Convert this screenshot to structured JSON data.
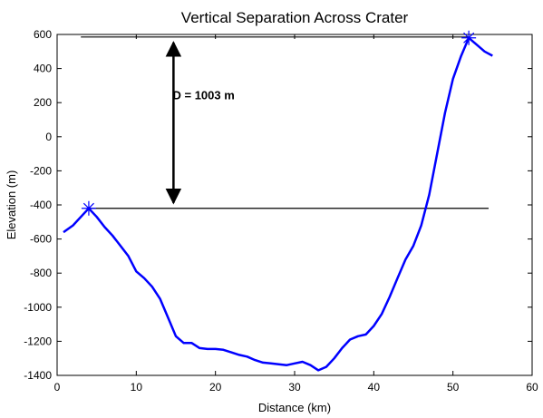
{
  "chart_data": {
    "type": "line",
    "title": "Vertical Separation Across Crater",
    "xlabel": "Distance (km)",
    "ylabel": "Elevation (m)",
    "xlim": [
      0,
      60
    ],
    "ylim": [
      -1400,
      600
    ],
    "xticks": [
      0,
      10,
      20,
      30,
      40,
      50,
      60
    ],
    "yticks": [
      -1400,
      -1200,
      -1000,
      -800,
      -600,
      -400,
      -200,
      0,
      200,
      400,
      600
    ],
    "grid": false,
    "legend": "none",
    "series": [
      {
        "color": "#0000ff",
        "x": [
          0.8,
          2,
          3,
          4,
          5,
          6,
          7,
          8,
          9,
          10,
          11,
          12,
          13,
          14,
          15,
          16,
          17,
          18,
          19,
          20,
          21,
          22,
          23,
          24,
          25,
          26,
          27,
          28,
          29,
          30,
          31,
          32,
          33,
          34,
          35,
          36,
          37,
          38,
          39,
          40,
          41,
          42,
          43,
          44,
          45,
          46,
          47,
          48,
          49,
          50,
          51,
          52,
          53,
          54,
          55
        ],
        "y": [
          -560,
          -520,
          -470,
          -420,
          -470,
          -530,
          -580,
          -640,
          -700,
          -790,
          -830,
          -880,
          -950,
          -1060,
          -1170,
          -1210,
          -1210,
          -1240,
          -1245,
          -1245,
          -1250,
          -1265,
          -1280,
          -1290,
          -1310,
          -1325,
          -1330,
          -1335,
          -1340,
          -1330,
          -1320,
          -1340,
          -1370,
          -1350,
          -1300,
          -1240,
          -1190,
          -1170,
          -1160,
          -1110,
          -1040,
          -940,
          -830,
          -720,
          -640,
          -520,
          -340,
          -100,
          140,
          340,
          470,
          580,
          540,
          500,
          475
        ]
      }
    ],
    "markers": [
      {
        "x": 4,
        "y": -420,
        "symbol": "*"
      },
      {
        "x": 52,
        "y": 580,
        "symbol": "*"
      }
    ],
    "reference_lines": [
      {
        "y": 585,
        "x_start": 3,
        "x_end": 52
      },
      {
        "y": -420,
        "x_start": 4,
        "x_end": 54.5
      }
    ],
    "arrow": {
      "x": 14.7,
      "y_from": -420,
      "y_to": 585
    },
    "annotation": {
      "text": "D = 1003 m",
      "x": 14.6,
      "y": 140
    }
  }
}
